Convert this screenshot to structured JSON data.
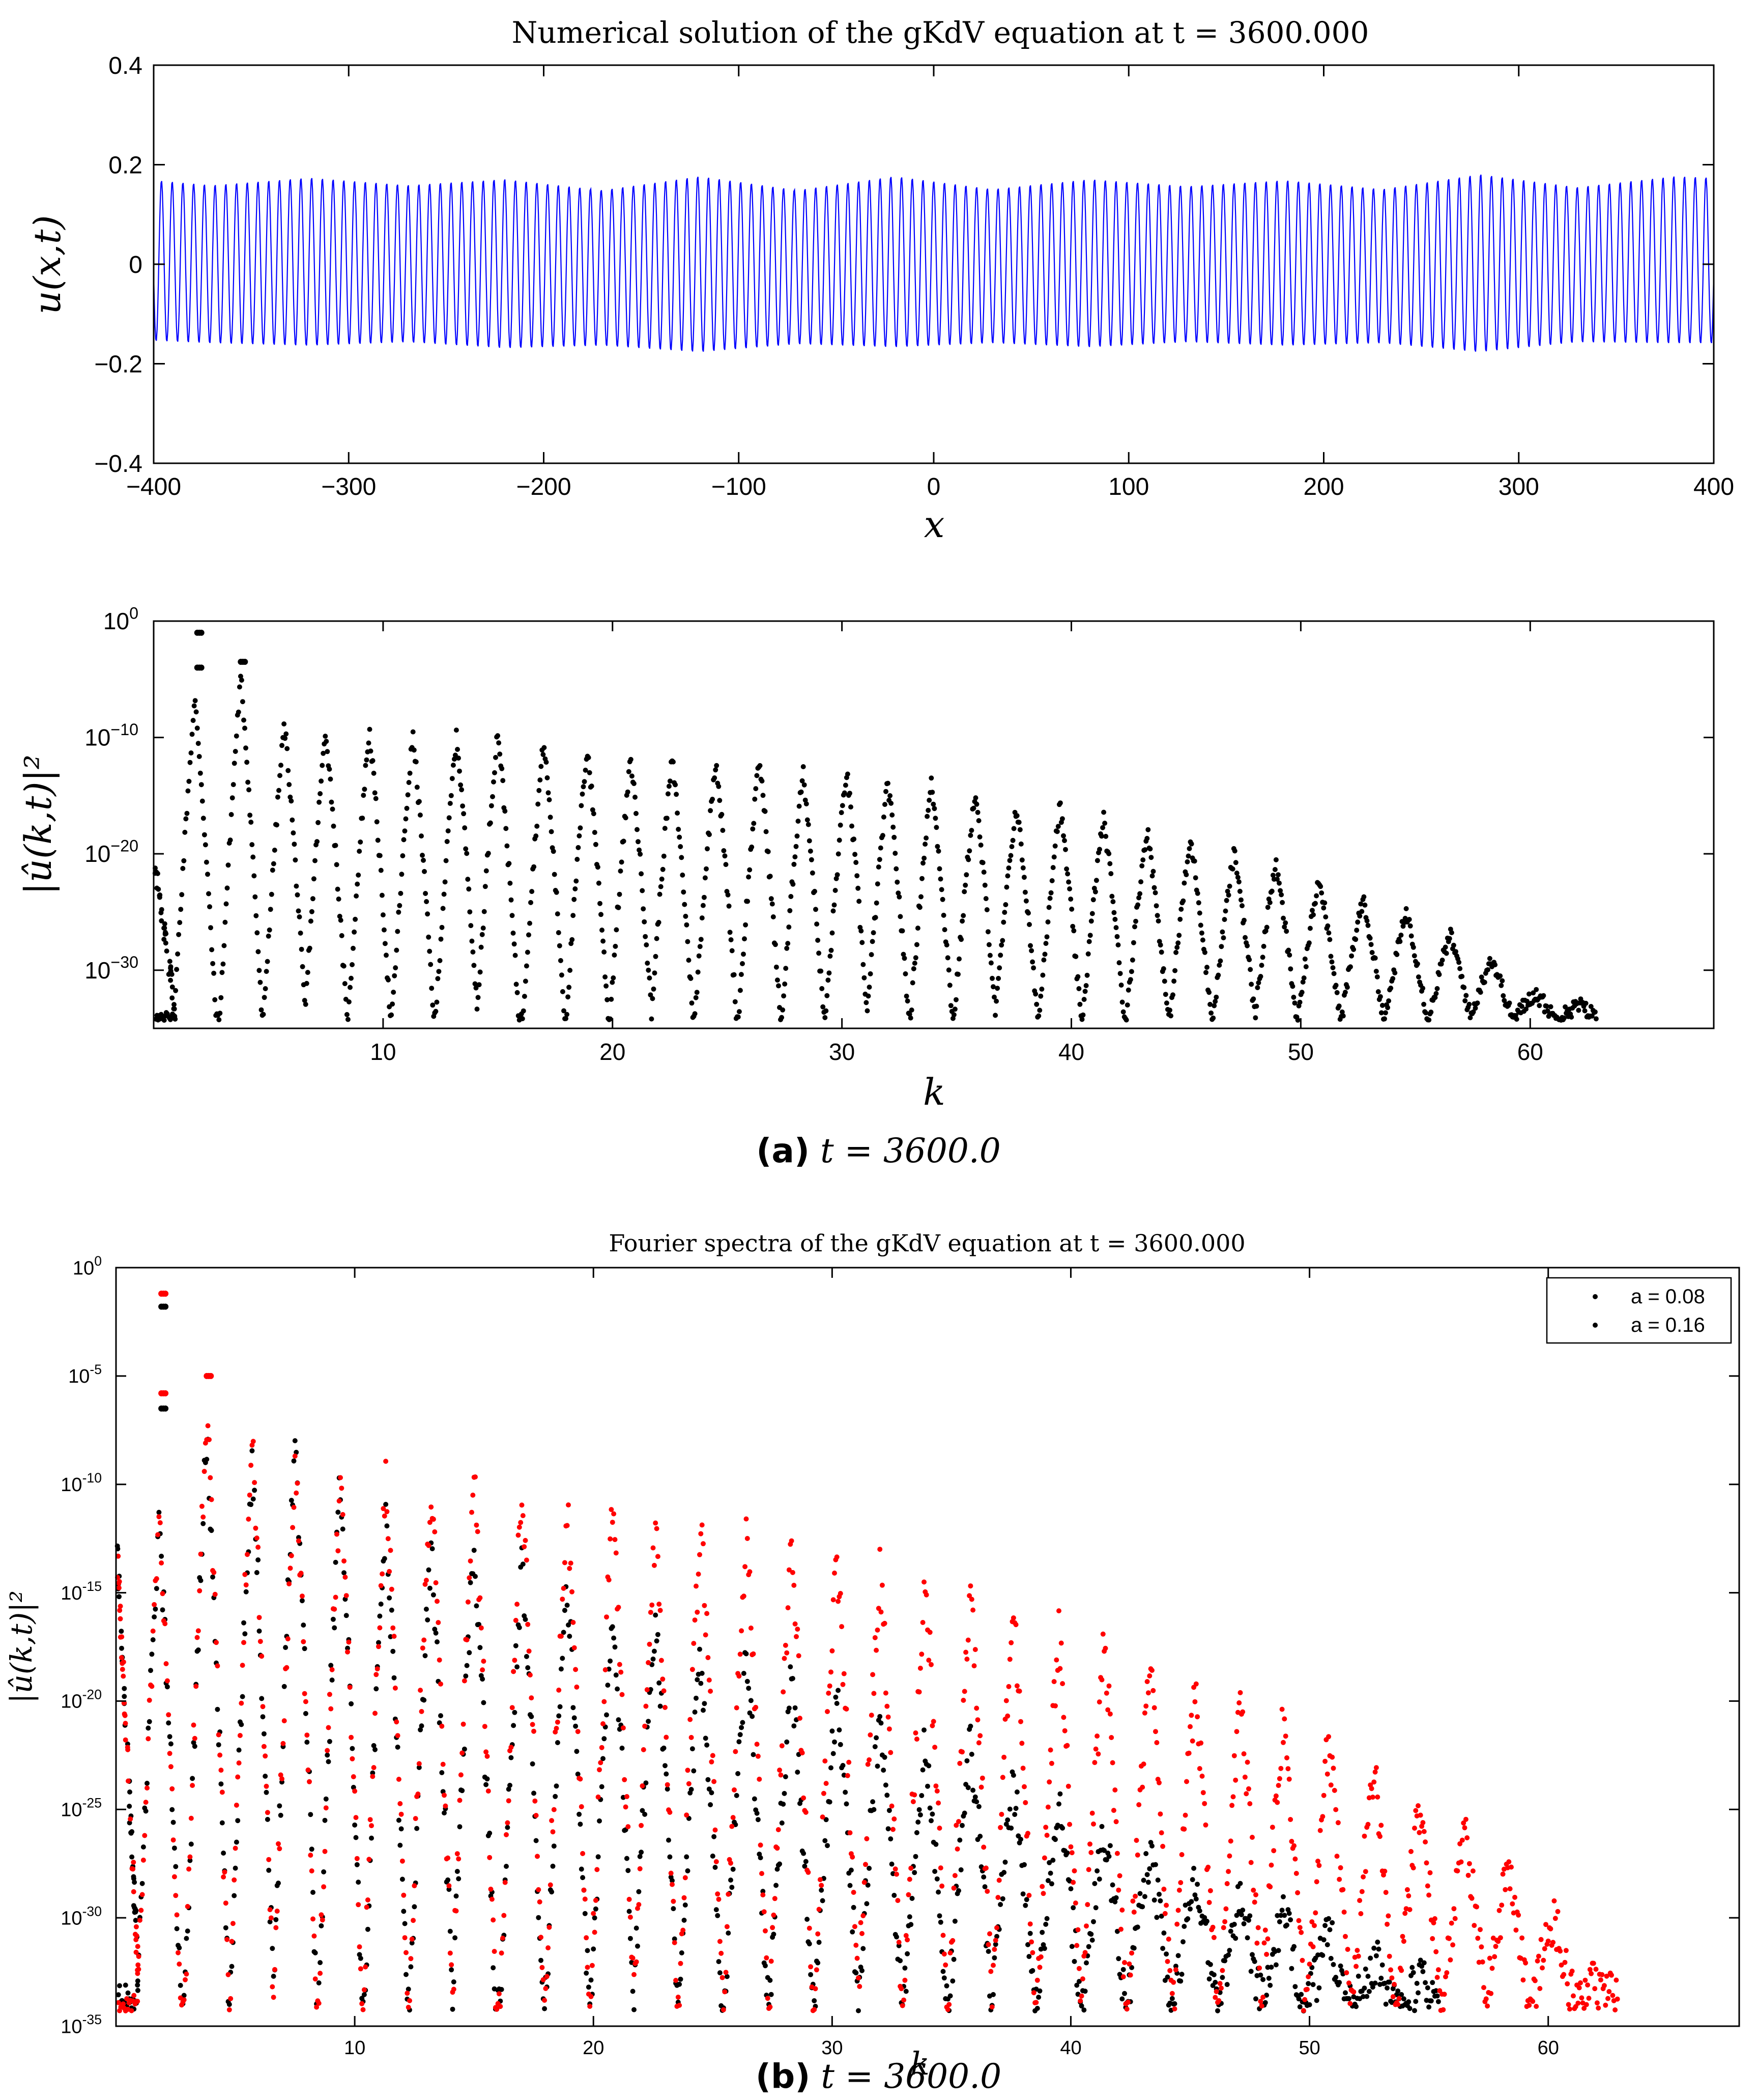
{
  "figure": {
    "caption_a": {
      "label": "(a)",
      "text": "t = 3600.0"
    },
    "caption_b": {
      "label": "(b)",
      "text": "t = 3600.0"
    }
  },
  "colors": {
    "wave": "#0000ff",
    "black_series": "#000000",
    "red_series": "#ff0000"
  },
  "chart_data": [
    {
      "id": "wave",
      "type": "line",
      "title": "Numerical solution of the gKdV equation at t = 3600.000",
      "xlabel": "x",
      "ylabel": "u(x,t)",
      "xlim": [
        -400,
        400
      ],
      "ylim": [
        -0.4,
        0.4
      ],
      "xticks": [
        -400,
        -300,
        -200,
        -100,
        0,
        100,
        200,
        300,
        400
      ],
      "xtick_labels": [
        "−400",
        "−300",
        "−200",
        "−100",
        "0",
        "100",
        "200",
        "300",
        "400"
      ],
      "yticks": [
        -0.4,
        -0.2,
        0,
        0.2,
        0.4
      ],
      "ytick_labels": [
        "−0.4",
        "−0.2",
        "0",
        "0.2",
        "0.4"
      ],
      "carrier_wavelength": 5.5,
      "amplitude_envelope": {
        "x": [
          -400,
          -370,
          -320,
          -270,
          -220,
          -170,
          -120,
          -70,
          -20,
          30,
          80,
          130,
          180,
          230,
          280,
          330,
          380,
          400
        ],
        "upper": [
          0.17,
          0.16,
          0.175,
          0.16,
          0.172,
          0.15,
          0.178,
          0.15,
          0.178,
          0.152,
          0.172,
          0.158,
          0.17,
          0.152,
          0.182,
          0.156,
          0.178,
          0.175
        ],
        "lower": [
          -0.155,
          -0.16,
          -0.165,
          -0.158,
          -0.17,
          -0.165,
          -0.178,
          -0.162,
          -0.168,
          -0.16,
          -0.168,
          -0.158,
          -0.165,
          -0.16,
          -0.178,
          -0.158,
          -0.16,
          -0.16
        ]
      }
    },
    {
      "id": "spectrum_a",
      "type": "scatter",
      "title": "",
      "xlabel": "k",
      "ylabel": "|û(k,t)|²",
      "xlim": [
        0,
        68
      ],
      "ylog_range": [
        -35,
        0
      ],
      "xticks": [
        10,
        20,
        30,
        40,
        50,
        60
      ],
      "ytick_labels": [
        {
          "mantissa": "10",
          "exp": "0",
          "value": 0
        },
        {
          "mantissa": "10",
          "exp": "−10",
          "value": -10
        },
        {
          "mantissa": "10",
          "exp": "−20",
          "value": -20
        },
        {
          "mantissa": "10",
          "exp": "−30",
          "value": -30
        }
      ],
      "series": [
        {
          "name": "a = 0.16",
          "color": "#000000",
          "lobe_centers_k": [
            1.8,
            3.8,
            5.7,
            7.5,
            9.4,
            11.3,
            13.2,
            15.0,
            17.0,
            18.9,
            20.8,
            22.6,
            24.5,
            26.4,
            28.3,
            30.2,
            32.0,
            33.9,
            35.8,
            37.6,
            39.5,
            41.4,
            43.3,
            45.2,
            47.1,
            48.9,
            50.8,
            52.7,
            54.6,
            56.5,
            58.3,
            60.2,
            62.1
          ],
          "lobe_peak_log10": [
            -7,
            -5,
            -9,
            -9.5,
            -9.5,
            -10,
            -10,
            -9.5,
            -10.5,
            -11,
            -12,
            -12,
            -12,
            -12,
            -13,
            -13,
            -14,
            -14,
            -15,
            -16,
            -16,
            -17,
            -18,
            -19,
            -20,
            -21,
            -22,
            -24,
            -25,
            -27,
            -29,
            -32,
            -33
          ],
          "isolated_points": [
            {
              "k": 1.9,
              "log10": -1
            },
            {
              "k": 1.9,
              "log10": -4
            },
            {
              "k": 3.8,
              "log10": -3.5
            }
          ]
        }
      ]
    },
    {
      "id": "spectrum_b",
      "type": "scatter",
      "title": "Fourier spectra of the gKdV equation at t = 3600.000",
      "xlabel": "k",
      "ylabel": "|û(k,t)|²",
      "xlim": [
        0,
        68
      ],
      "ylog_range": [
        -35,
        0
      ],
      "xticks": [
        10,
        20,
        30,
        40,
        50,
        60
      ],
      "ytick_labels": [
        {
          "mantissa": "10",
          "exp": "0",
          "value": 0
        },
        {
          "mantissa": "10",
          "exp": "-5",
          "value": -5
        },
        {
          "mantissa": "10",
          "exp": "-10",
          "value": -10
        },
        {
          "mantissa": "10",
          "exp": "-15",
          "value": -15
        },
        {
          "mantissa": "10",
          "exp": "-20",
          "value": -20
        },
        {
          "mantissa": "10",
          "exp": "-25",
          "value": -25
        },
        {
          "mantissa": "10",
          "exp": "-30",
          "value": -30
        },
        {
          "mantissa": "10",
          "exp": "-35",
          "value": -35
        }
      ],
      "legend_position": "top-right",
      "series": [
        {
          "name": "a = 0.08",
          "color": "#000000",
          "lobe_centers_k": [
            1.8,
            3.8,
            5.7,
            7.5,
            9.4,
            11.3,
            13.2,
            15.0,
            17.0,
            18.9,
            20.8,
            22.6,
            24.5,
            26.4,
            28.3,
            30.2,
            32.0,
            33.9,
            35.8,
            37.6,
            39.5,
            41.4,
            43.3,
            45.2,
            47.1,
            48.9,
            50.8,
            52.7,
            54.6
          ],
          "lobe_peak_log10": [
            -12,
            -8,
            -9,
            -8,
            -10,
            -12,
            -13,
            -13,
            -14,
            -15,
            -16,
            -16,
            -18,
            -18,
            -19,
            -20,
            -21,
            -22,
            -22,
            -24,
            -25,
            -26,
            -27,
            -28,
            -29,
            -30,
            -31,
            -32,
            -33
          ],
          "isolated_points": [
            {
              "k": 1.9,
              "log10": -1.8
            },
            {
              "k": 1.9,
              "log10": -6.5
            }
          ]
        },
        {
          "name": "a = 0.16",
          "color": "#ff0000",
          "lobe_centers_k": [
            1.8,
            3.8,
            5.7,
            7.5,
            9.4,
            11.3,
            13.2,
            15.0,
            17.0,
            18.9,
            20.8,
            22.6,
            24.5,
            26.4,
            28.3,
            30.2,
            32.0,
            33.9,
            35.8,
            37.6,
            39.5,
            41.4,
            43.3,
            45.2,
            47.1,
            48.9,
            50.8,
            52.7,
            54.6,
            56.5,
            58.3,
            60.2,
            62.1
          ],
          "lobe_peak_log10": [
            -12,
            -7,
            -8,
            -9,
            -10,
            -10,
            -10,
            -10,
            -10.5,
            -11,
            -11.5,
            -12,
            -12,
            -12.5,
            -13,
            -13.5,
            -14,
            -14.5,
            -15,
            -16,
            -17,
            -17.5,
            -18.5,
            -19.5,
            -20,
            -21,
            -22,
            -23,
            -25,
            -26,
            -28,
            -30,
            -33
          ],
          "isolated_points": [
            {
              "k": 1.9,
              "log10": -1.2
            },
            {
              "k": 1.9,
              "log10": -5.8
            },
            {
              "k": 3.8,
              "log10": -5
            }
          ]
        }
      ]
    }
  ]
}
